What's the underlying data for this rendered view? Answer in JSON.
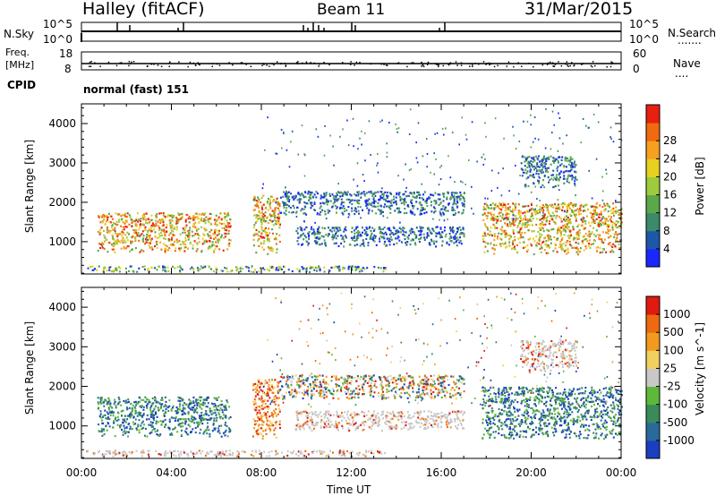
{
  "header": {
    "station": "Halley (fitACF)",
    "beam": "Beam 11",
    "date": "31/Mar/2015"
  },
  "nsky_panel": {
    "left_label": "N.Sky",
    "right_label": "N.Search",
    "left_ticks": [
      "10^5",
      "10^0"
    ],
    "right_ticks": [
      "10^5",
      "10^0"
    ]
  },
  "freq_panel": {
    "left_label_1": "Freq.",
    "left_label_2": "[MHz]",
    "right_label": "Nave",
    "left_ticks": [
      "18",
      "8"
    ],
    "right_ticks": [
      "60",
      "0"
    ]
  },
  "cpid": {
    "label": "CPID",
    "value": "normal (fast) 151"
  },
  "chart_data": [
    {
      "type": "heatmap",
      "panel": "power",
      "xlabel": "",
      "ylabel": "Slant Range [km]",
      "xlim": [
        "00:00",
        "24:00"
      ],
      "ylim": [
        180,
        4500
      ],
      "yticks": [
        "1000",
        "2000",
        "3000",
        "4000"
      ],
      "colorbar": {
        "label": "Power [dB]",
        "ticks": [
          "4",
          "8",
          "12",
          "16",
          "20",
          "24",
          "28"
        ],
        "colors": [
          "#1a28ff",
          "#1f57a8",
          "#3b8a6a",
          "#5aa84a",
          "#9ccc3c",
          "#e8d020",
          "#f7a020",
          "#f06a10",
          "#e82010"
        ]
      },
      "regions": [
        {
          "t": [
            0.7,
            6.6
          ],
          "r": [
            750,
            1750
          ],
          "level": "high"
        },
        {
          "t": [
            7.6,
            8.8
          ],
          "r": [
            700,
            2200
          ],
          "level": "high"
        },
        {
          "t": [
            8.8,
            17.0
          ],
          "r": [
            1700,
            2300
          ],
          "level": "low"
        },
        {
          "t": [
            9.5,
            17.0
          ],
          "r": [
            900,
            1400
          ],
          "level": "low"
        },
        {
          "t": [
            17.8,
            24.0
          ],
          "r": [
            700,
            2000
          ],
          "level": "high"
        },
        {
          "t": [
            0.2,
            13.5
          ],
          "r": [
            250,
            400
          ],
          "level": "mixed"
        },
        {
          "t": [
            19.5,
            22.0
          ],
          "r": [
            2400,
            3200
          ],
          "level": "low"
        }
      ]
    },
    {
      "type": "heatmap",
      "panel": "velocity",
      "xlabel": "Time UT",
      "ylabel": "Slant Range [km]",
      "xlim": [
        "00:00",
        "24:00"
      ],
      "ylim": [
        180,
        4500
      ],
      "xticks": [
        "00:00",
        "04:00",
        "08:00",
        "12:00",
        "16:00",
        "20:00",
        "00:00"
      ],
      "yticks": [
        "1000",
        "2000",
        "3000",
        "4000"
      ],
      "colorbar": {
        "label": "Velocity [m s^-1]",
        "ticks": [
          "1000",
          "500",
          "100",
          "25",
          "-25",
          "-100",
          "-500",
          "-1000"
        ],
        "colors": [
          "#1a3fc0",
          "#2a6a9a",
          "#3a8a5a",
          "#5fb83a",
          "#c8c8c8",
          "#f2d060",
          "#f29a20",
          "#ee6a10",
          "#e01a10"
        ]
      },
      "regions": [
        {
          "t": [
            0.7,
            6.6
          ],
          "r": [
            750,
            1750
          ],
          "level": "toward"
        },
        {
          "t": [
            7.6,
            8.8
          ],
          "r": [
            700,
            2200
          ],
          "level": "away"
        },
        {
          "t": [
            8.8,
            17.0
          ],
          "r": [
            1700,
            2300
          ],
          "level": "mixed"
        },
        {
          "t": [
            9.5,
            17.0
          ],
          "r": [
            900,
            1400
          ],
          "level": "ground"
        },
        {
          "t": [
            17.8,
            24.0
          ],
          "r": [
            700,
            2000
          ],
          "level": "toward"
        },
        {
          "t": [
            0.2,
            13.5
          ],
          "r": [
            250,
            400
          ],
          "level": "ground"
        },
        {
          "t": [
            19.5,
            22.0
          ],
          "r": [
            2400,
            3200
          ],
          "level": "ground"
        }
      ]
    }
  ]
}
